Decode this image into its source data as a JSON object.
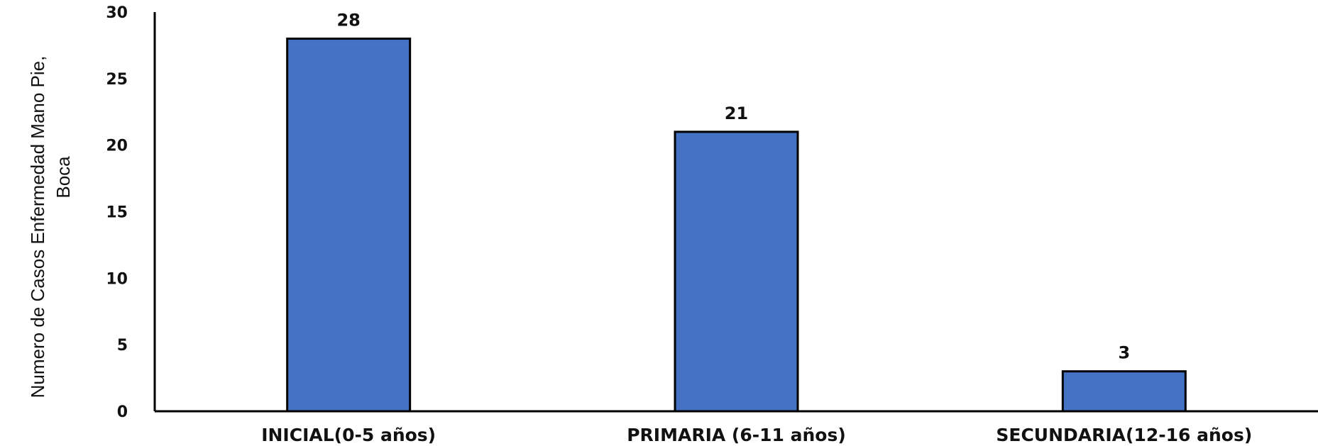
{
  "chart_data": {
    "type": "bar",
    "title": "",
    "xlabel": "",
    "ylabel": [
      "Numero de Casos Enfermedad Mano Pie,",
      "Boca"
    ],
    "categories": [
      "INICIAL(0-5 años)",
      "PRIMARIA (6-11 años)",
      "SECUNDARIA(12-16 años)"
    ],
    "values": [
      28,
      21,
      3
    ],
    "data_labels": [
      "28",
      "21",
      "3"
    ],
    "ylim": [
      0,
      30
    ],
    "yticks": [
      0,
      5,
      10,
      15,
      20,
      25,
      30
    ],
    "grid": false,
    "legend": "none",
    "bar_color": "#4472C4"
  }
}
